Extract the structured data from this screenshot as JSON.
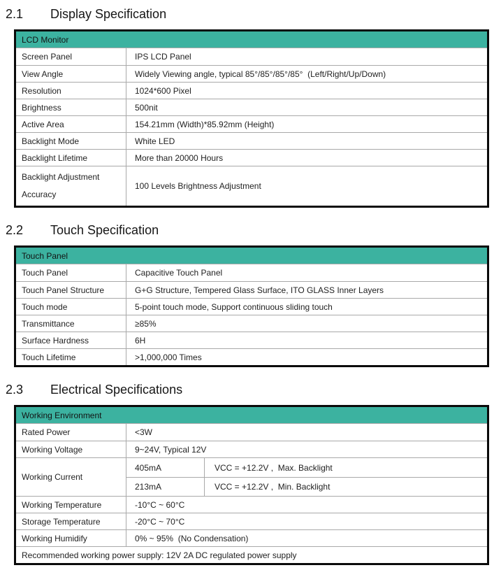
{
  "colors": {
    "table_header_bg": "#3cb2a0",
    "outer_border": "#0a0a0a",
    "grid_line": "#a9a9a9",
    "text": "#1f1f1f"
  },
  "sections": [
    {
      "number": "2.1",
      "title": "Display Specification",
      "table": {
        "header": "LCD Monitor",
        "rows": [
          {
            "label": "Screen Panel",
            "value": "IPS LCD Panel"
          },
          {
            "label": "View Angle",
            "value": "Widely Viewing angle, typical 85°/85°/85°/85°  (Left/Right/Up/Down)"
          },
          {
            "label": "Resolution",
            "value": "1024*600 Pixel"
          },
          {
            "label": "Brightness",
            "value": "500nit"
          },
          {
            "label": "Active Area",
            "value": "154.21mm (Width)*85.92mm (Height)"
          },
          {
            "label": "Backlight Mode",
            "value": "White LED"
          },
          {
            "label": "Backlight Lifetime",
            "value": "More than 20000 Hours"
          },
          {
            "label": "Backlight Adjustment Accuracy",
            "value": "100 Levels Brightness Adjustment"
          }
        ]
      }
    },
    {
      "number": "2.2",
      "title": "Touch Specification",
      "table": {
        "header": "Touch Panel",
        "rows": [
          {
            "label": "Touch Panel",
            "value": "Capacitive Touch Panel"
          },
          {
            "label": "Touch Panel Structure",
            "value": "G+G Structure, Tempered Glass Surface, ITO GLASS Inner Layers"
          },
          {
            "label": "Touch mode",
            "value": "5-point touch mode, Support continuous sliding touch"
          },
          {
            "label": "Transmittance",
            "value": "≥85%"
          },
          {
            "label": "Surface Hardness",
            "value": "6H"
          },
          {
            "label": "Touch Lifetime",
            "value": ">1,000,000 Times"
          }
        ]
      }
    },
    {
      "number": "2.3",
      "title": "Electrical Specifications",
      "table": {
        "header": "Working Environment",
        "rows": [
          {
            "label": "Rated Power",
            "value": "<3W"
          },
          {
            "label": "Working Voltage",
            "value": "9~24V, Typical 12V"
          },
          {
            "label": "Working Current",
            "subrows": [
              {
                "current": "405mA",
                "condition": "VCC = +12.2V ,  Max. Backlight"
              },
              {
                "current": "213mA",
                "condition": "VCC = +12.2V ,  Min. Backlight"
              }
            ]
          },
          {
            "label": "Working Temperature",
            "value": "-10°C ~ 60°C"
          },
          {
            "label": "Storage Temperature",
            "value": "-20°C ~ 70°C"
          },
          {
            "label": "Working Humidify",
            "value": "0% ~ 95%  (No Condensation)"
          }
        ],
        "footer": "Recommended working power supply: 12V 2A DC regulated power supply"
      }
    }
  ]
}
